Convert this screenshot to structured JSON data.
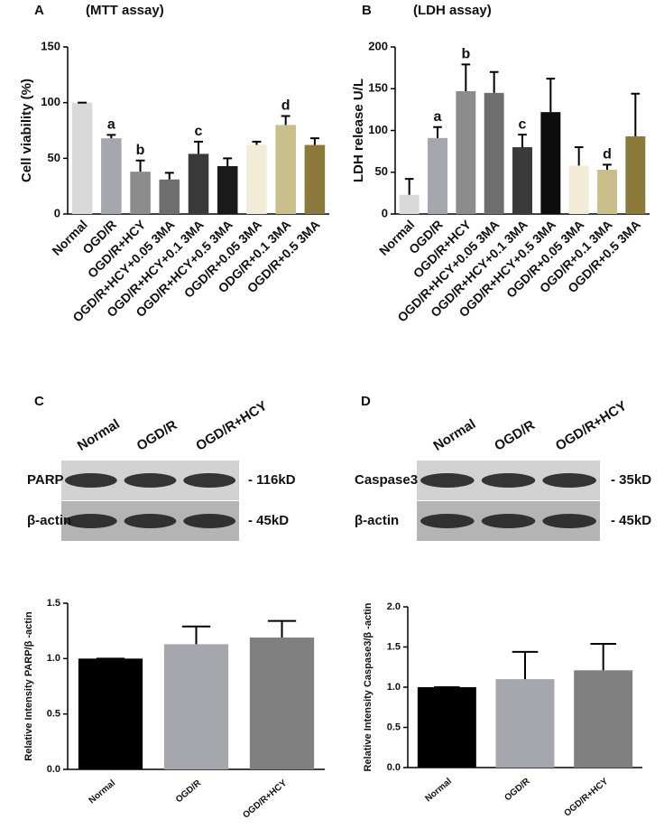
{
  "chart_data": [
    {
      "type": "bar",
      "panel": "A",
      "title": "(MTT assay)",
      "ylabel": "Cell viability (%)",
      "categories": [
        "Normal",
        "OGD/R",
        "OGD/R+HCY",
        "OGD/R+HCY+0.05 3MA",
        "OGD/R+HCY+0.1 3MA",
        "OGD/R+HCY+0.5 3MA",
        "OGD/R+0.05 3MA",
        "ODG/R+0.1 3MA",
        "OGD/R+0.5 3MA"
      ],
      "values": [
        100,
        68,
        38,
        31,
        54,
        43,
        62,
        80,
        62
      ],
      "errors": [
        0,
        3,
        10,
        6,
        11,
        7,
        3,
        8,
        6
      ],
      "letters": [
        null,
        "a",
        "b",
        null,
        "c",
        null,
        null,
        "d",
        null
      ],
      "colors": [
        "#d9d9d9",
        "#a6a6ad",
        "#8c8c8c",
        "#6e6e6e",
        "#3a3a3a",
        "#1a1a1a",
        "#f2ecd7",
        "#c8bf8a",
        "#8c7a3a"
      ],
      "ylim": [
        0,
        150
      ],
      "yticks": [
        0,
        50,
        100,
        150
      ]
    },
    {
      "type": "bar",
      "panel": "B",
      "title": "(LDH assay)",
      "ylabel": "LDH release U/L",
      "categories": [
        "Normal",
        "OGD/R",
        "OGD/R+HCY",
        "OGD/R+HCY+0.05 3MA",
        "OGD/R+HCY+0.1 3MA",
        "OGD/R+HCY+0.5 3MA",
        "OGD/R+0.05 3MA",
        "OGD/R+0.1 3MA",
        "OGD/R+0.5 3MA"
      ],
      "values": [
        23,
        91,
        147,
        145,
        80,
        122,
        58,
        53,
        93
      ],
      "errors": [
        19,
        13,
        32,
        25,
        15,
        40,
        22,
        6,
        51
      ],
      "letters": [
        null,
        "a",
        "b",
        null,
        "c",
        null,
        null,
        "d",
        null
      ],
      "colors": [
        "#d9d9d9",
        "#a6a6ad",
        "#8c8c8c",
        "#6e6e6e",
        "#3a3a3a",
        "#0d0d0d",
        "#f2ecd7",
        "#c8bf8a",
        "#8c7a3a"
      ],
      "ylim": [
        0,
        200
      ],
      "yticks": [
        0,
        50,
        100,
        150,
        200
      ]
    },
    {
      "type": "bar",
      "ylabel": "Relative Intensity PARP/β -actin",
      "categories": [
        "Normal",
        "OGD/R",
        "OGD/R+HCY"
      ],
      "values": [
        1.0,
        1.13,
        1.19
      ],
      "errors": [
        0,
        0.16,
        0.15
      ],
      "colors": [
        "#000000",
        "#a6a6ad",
        "#808080"
      ],
      "ylim": [
        0,
        1.5
      ],
      "yticks": [
        {
          "value": 0,
          "label": "0.0"
        },
        {
          "value": 0.5,
          "label": "0.5"
        },
        {
          "value": 1,
          "label": "1.0"
        },
        {
          "value": 1.5,
          "label": "1.5"
        }
      ]
    },
    {
      "type": "bar",
      "ylabel": "Relative Intensity Caspase3/β -actin",
      "categories": [
        "Normal",
        "OGD/R",
        "OGD/R+HCY"
      ],
      "values": [
        1.0,
        1.1,
        1.21
      ],
      "errors": [
        0,
        0.34,
        0.33
      ],
      "colors": [
        "#000000",
        "#a6a6ad",
        "#808080"
      ],
      "ylim": [
        0,
        2
      ],
      "yticks": [
        {
          "value": 0,
          "label": "0.0"
        },
        {
          "value": 0.5,
          "label": "0.5"
        },
        {
          "value": 1,
          "label": "1.0"
        },
        {
          "value": 1.5,
          "label": "1.5"
        },
        {
          "value": 2,
          "label": "2.0"
        }
      ]
    }
  ],
  "blots": [
    {
      "panel": "C",
      "lanes": [
        "Normal",
        "OGD/R",
        "OGD/R+HCY"
      ],
      "rows": [
        {
          "label": "PARP",
          "size": "- 116kD"
        },
        {
          "label": "β-actin",
          "size": "- 45kD"
        }
      ]
    },
    {
      "panel": "D",
      "lanes": [
        "Normal",
        "OGD/R",
        "OGD/R+HCY"
      ],
      "rows": [
        {
          "label": "Caspase3",
          "size": "- 35kD"
        },
        {
          "label": "β-actin",
          "size": "- 45kD"
        }
      ]
    }
  ]
}
